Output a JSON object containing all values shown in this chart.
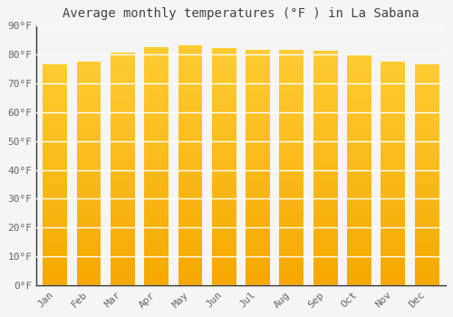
{
  "title": "Average monthly temperatures (°F ) in La Sabana",
  "months": [
    "Jan",
    "Feb",
    "Mar",
    "Apr",
    "May",
    "Jun",
    "Jul",
    "Aug",
    "Sep",
    "Oct",
    "Nov",
    "Dec"
  ],
  "values": [
    76.5,
    77.5,
    80.5,
    82.5,
    83.0,
    82.0,
    81.5,
    81.5,
    81.0,
    79.5,
    77.5,
    76.5
  ],
  "ylim": [
    0,
    90
  ],
  "yticks": [
    0,
    10,
    20,
    30,
    40,
    50,
    60,
    70,
    80,
    90
  ],
  "ytick_labels": [
    "0°F",
    "10°F",
    "20°F",
    "30°F",
    "40°F",
    "50°F",
    "60°F",
    "70°F",
    "80°F",
    "90°F"
  ],
  "bar_color_top": "#FFCC33",
  "bar_color_bottom": "#F5A800",
  "background_color": "#F5F5F5",
  "plot_bg_color": "#F5F5F5",
  "grid_color": "#FFFFFF",
  "spine_color": "#333333",
  "title_color": "#444444",
  "tick_color": "#666666",
  "title_fontsize": 10,
  "tick_fontsize": 8,
  "font_family": "monospace"
}
